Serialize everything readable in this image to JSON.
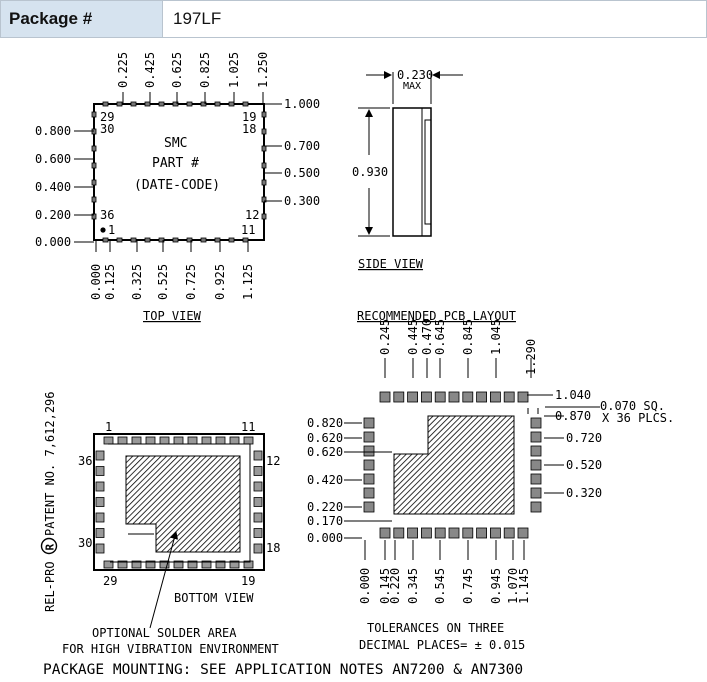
{
  "header": {
    "label": "Package #",
    "value": "197LF"
  },
  "top_view": {
    "title": "TOP VIEW",
    "top_ticks": [
      "0.225",
      "0.425",
      "0.625",
      "0.825",
      "1.025",
      "1.250"
    ],
    "bottom_ticks": [
      "0.000",
      "0.125",
      "0.325",
      "0.525",
      "0.725",
      "0.925",
      "1.125"
    ],
    "left_ticks": [
      "0.800",
      "0.600",
      "0.400",
      "0.200",
      "0.000"
    ],
    "right_ticks": [
      "1.000",
      "0.700",
      "0.500",
      "0.300"
    ],
    "corner_pins": {
      "tl": "29",
      "tl2": "30",
      "tr": "19",
      "tr2": "18",
      "bl": "36",
      "bl2": "1",
      "br": "12",
      "br2": "11"
    },
    "body_lines": [
      "SMC",
      "PART #",
      "(DATE-CODE)"
    ]
  },
  "side_view": {
    "title": "SIDE VIEW",
    "width_label": "0.230",
    "width_note": "MAX",
    "height_label": "0.930"
  },
  "pcb_layout": {
    "title": "RECOMMENDED PCB LAYOUT",
    "top_ticks": [
      "0.245",
      "0.445",
      "0.470",
      "0.645",
      "0.845",
      "1.045",
      "1.290"
    ],
    "bottom_ticks": [
      "0.000",
      "0.145",
      "0.220",
      "0.345",
      "0.545",
      "0.745",
      "0.945",
      "1.070",
      "1.145"
    ],
    "left_ticks": [
      "0.820",
      "0.620",
      "0.620",
      "0.420",
      "0.220",
      "0.170",
      "0.000"
    ],
    "right_ticks": [
      "1.040",
      "0.870",
      "0.720",
      "0.520",
      "0.320"
    ],
    "pad_note_1": "0.070 SQ.",
    "pad_note_2": "X 36 PLCS."
  },
  "bottom_view": {
    "title": "BOTTOM VIEW",
    "pins": {
      "tl": "1",
      "tr": "11",
      "l": "36",
      "r": "12",
      "bl": "30",
      "br": "18",
      "blb": "29",
      "brb": "19"
    }
  },
  "patent": {
    "brand": "REL-PRO",
    "registered": "R",
    "text": "PATENT NO. 7,612,296"
  },
  "notes": {
    "solder_1": "OPTIONAL SOLDER AREA",
    "solder_2": "FOR HIGH VIBRATION ENVIRONMENT",
    "tol_1": "TOLERANCES ON THREE",
    "tol_2": "DECIMAL PLACES= ± 0.015",
    "mounting": "PACKAGE MOUNTING: SEE APPLICATION NOTES AN7200 & AN7300"
  }
}
